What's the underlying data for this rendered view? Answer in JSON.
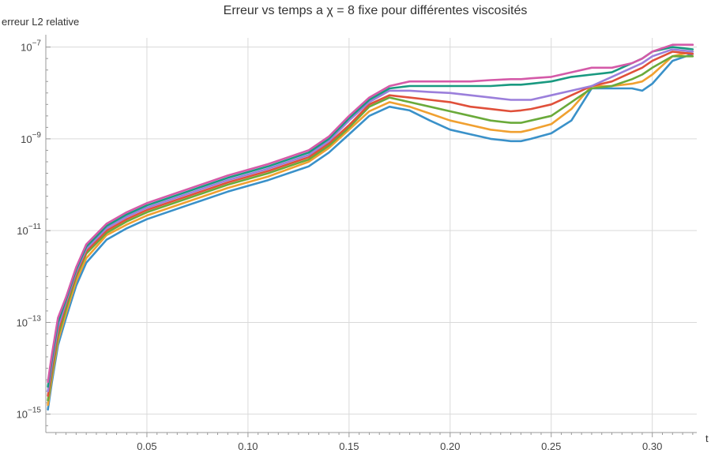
{
  "chart_data": {
    "type": "line",
    "title": "Erreur vs temps a χ = 8 fixe pour différentes viscosités",
    "xlabel": "t",
    "ylabel": "erreur L2 relative",
    "xlim": [
      0,
      0.322
    ],
    "ylim_log10": [
      -15.4,
      -6.8
    ],
    "y_scale": "log",
    "grid": true,
    "legend": "none",
    "x_ticks": [
      0.05,
      0.1,
      0.15,
      0.2,
      0.25,
      0.3
    ],
    "x_tick_labels": [
      "0.05",
      "0.10",
      "0.15",
      "0.20",
      "0.25",
      "0.30"
    ],
    "y_major_ticks_log10": [
      -15,
      -13,
      -11,
      -9,
      -7
    ],
    "y_tick_labels": [
      {
        "base": "10",
        "exp": "−15"
      },
      {
        "base": "10",
        "exp": "−13"
      },
      {
        "base": "10",
        "exp": "−11"
      },
      {
        "base": "10",
        "exp": "−9"
      },
      {
        "base": "10",
        "exp": "−7"
      }
    ],
    "colors": [
      "#3a91c9",
      "#f0a030",
      "#6aaa3a",
      "#e0503a",
      "#9b7fdb",
      "#199980",
      "#d45aa8"
    ],
    "series": [
      {
        "color": "#3a91c9",
        "t": [
          0.001,
          0.003,
          0.006,
          0.01,
          0.015,
          0.02,
          0.03,
          0.04,
          0.05,
          0.07,
          0.09,
          0.11,
          0.13,
          0.14,
          0.15,
          0.16,
          0.17,
          0.18,
          0.19,
          0.2,
          0.21,
          0.22,
          0.23,
          0.235,
          0.24,
          0.25,
          0.26,
          0.27,
          0.28,
          0.29,
          0.295,
          0.3,
          0.31,
          0.32
        ],
        "log10_err": [
          -14.9,
          -14.3,
          -13.5,
          -12.9,
          -12.2,
          -11.7,
          -11.2,
          -10.95,
          -10.75,
          -10.45,
          -10.15,
          -9.9,
          -9.6,
          -9.3,
          -8.9,
          -8.5,
          -8.3,
          -8.38,
          -8.6,
          -8.8,
          -8.9,
          -9.0,
          -9.05,
          -9.05,
          -9.0,
          -8.88,
          -8.6,
          -7.9,
          -7.9,
          -7.9,
          -7.95,
          -7.8,
          -7.3,
          -7.15
        ]
      },
      {
        "color": "#f0a030",
        "t": [
          0.001,
          0.003,
          0.006,
          0.01,
          0.015,
          0.02,
          0.03,
          0.04,
          0.05,
          0.07,
          0.09,
          0.11,
          0.13,
          0.14,
          0.15,
          0.16,
          0.17,
          0.18,
          0.19,
          0.2,
          0.21,
          0.22,
          0.23,
          0.235,
          0.24,
          0.25,
          0.26,
          0.27,
          0.28,
          0.29,
          0.295,
          0.3,
          0.31,
          0.32
        ],
        "log10_err": [
          -14.8,
          -14.2,
          -13.4,
          -12.8,
          -12.1,
          -11.6,
          -11.1,
          -10.87,
          -10.67,
          -10.37,
          -10.07,
          -9.82,
          -9.5,
          -9.2,
          -8.8,
          -8.4,
          -8.2,
          -8.3,
          -8.45,
          -8.6,
          -8.7,
          -8.8,
          -8.85,
          -8.85,
          -8.8,
          -8.68,
          -8.35,
          -7.85,
          -7.85,
          -7.8,
          -7.75,
          -7.6,
          -7.2,
          -7.1
        ]
      },
      {
        "color": "#6aaa3a",
        "t": [
          0.001,
          0.003,
          0.006,
          0.01,
          0.015,
          0.02,
          0.03,
          0.04,
          0.05,
          0.07,
          0.09,
          0.11,
          0.13,
          0.14,
          0.15,
          0.16,
          0.17,
          0.18,
          0.19,
          0.2,
          0.21,
          0.22,
          0.23,
          0.235,
          0.24,
          0.25,
          0.26,
          0.27,
          0.28,
          0.29,
          0.295,
          0.3,
          0.31,
          0.32
        ],
        "log10_err": [
          -14.7,
          -14.1,
          -13.3,
          -12.7,
          -12.0,
          -11.5,
          -11.05,
          -10.8,
          -10.6,
          -10.3,
          -10.0,
          -9.75,
          -9.45,
          -9.15,
          -8.75,
          -8.3,
          -8.1,
          -8.2,
          -8.3,
          -8.4,
          -8.5,
          -8.6,
          -8.65,
          -8.65,
          -8.6,
          -8.5,
          -8.2,
          -7.9,
          -7.85,
          -7.7,
          -7.6,
          -7.45,
          -7.2,
          -7.2
        ]
      },
      {
        "color": "#e0503a",
        "t": [
          0.001,
          0.003,
          0.006,
          0.01,
          0.015,
          0.02,
          0.03,
          0.04,
          0.05,
          0.07,
          0.09,
          0.11,
          0.13,
          0.14,
          0.15,
          0.16,
          0.17,
          0.18,
          0.19,
          0.2,
          0.21,
          0.22,
          0.23,
          0.235,
          0.24,
          0.25,
          0.26,
          0.27,
          0.28,
          0.29,
          0.295,
          0.3,
          0.31,
          0.32
        ],
        "log10_err": [
          -14.6,
          -14.0,
          -13.2,
          -12.6,
          -11.95,
          -11.45,
          -11.0,
          -10.75,
          -10.55,
          -10.25,
          -9.95,
          -9.7,
          -9.4,
          -9.1,
          -8.7,
          -8.25,
          -8.05,
          -8.1,
          -8.15,
          -8.2,
          -8.3,
          -8.35,
          -8.4,
          -8.38,
          -8.35,
          -8.25,
          -8.05,
          -7.85,
          -7.75,
          -7.55,
          -7.45,
          -7.3,
          -7.1,
          -7.15
        ]
      },
      {
        "color": "#9b7fdb",
        "t": [
          0.001,
          0.003,
          0.006,
          0.01,
          0.015,
          0.02,
          0.03,
          0.04,
          0.05,
          0.07,
          0.09,
          0.11,
          0.13,
          0.14,
          0.15,
          0.16,
          0.17,
          0.18,
          0.19,
          0.2,
          0.21,
          0.22,
          0.23,
          0.235,
          0.24,
          0.25,
          0.26,
          0.27,
          0.28,
          0.29,
          0.295,
          0.3,
          0.31,
          0.32
        ],
        "log10_err": [
          -14.5,
          -13.9,
          -13.1,
          -12.55,
          -11.9,
          -11.4,
          -10.95,
          -10.7,
          -10.5,
          -10.2,
          -9.9,
          -9.65,
          -9.35,
          -9.05,
          -8.6,
          -8.2,
          -7.95,
          -7.95,
          -7.98,
          -8.0,
          -8.05,
          -8.1,
          -8.15,
          -8.15,
          -8.15,
          -8.05,
          -7.95,
          -7.85,
          -7.65,
          -7.45,
          -7.35,
          -7.2,
          -7.05,
          -7.1
        ]
      },
      {
        "color": "#199980",
        "t": [
          0.001,
          0.003,
          0.006,
          0.01,
          0.015,
          0.02,
          0.03,
          0.04,
          0.05,
          0.07,
          0.09,
          0.11,
          0.13,
          0.14,
          0.15,
          0.16,
          0.17,
          0.18,
          0.19,
          0.2,
          0.21,
          0.22,
          0.23,
          0.235,
          0.24,
          0.25,
          0.26,
          0.27,
          0.28,
          0.29,
          0.295,
          0.3,
          0.31,
          0.32
        ],
        "log10_err": [
          -14.4,
          -13.8,
          -13.0,
          -12.5,
          -11.85,
          -11.35,
          -10.9,
          -10.65,
          -10.45,
          -10.15,
          -9.85,
          -9.6,
          -9.3,
          -9.0,
          -8.55,
          -8.15,
          -7.9,
          -7.85,
          -7.85,
          -7.85,
          -7.85,
          -7.85,
          -7.82,
          -7.82,
          -7.8,
          -7.75,
          -7.65,
          -7.6,
          -7.55,
          -7.35,
          -7.25,
          -7.1,
          -7.0,
          -7.05
        ]
      },
      {
        "color": "#d45aa8",
        "t": [
          0.001,
          0.003,
          0.006,
          0.01,
          0.015,
          0.02,
          0.03,
          0.04,
          0.05,
          0.07,
          0.09,
          0.11,
          0.13,
          0.14,
          0.15,
          0.16,
          0.17,
          0.18,
          0.19,
          0.2,
          0.21,
          0.22,
          0.23,
          0.235,
          0.24,
          0.25,
          0.26,
          0.27,
          0.28,
          0.29,
          0.295,
          0.3,
          0.31,
          0.32
        ],
        "log10_err": [
          -14.3,
          -13.7,
          -12.9,
          -12.45,
          -11.8,
          -11.3,
          -10.85,
          -10.6,
          -10.4,
          -10.1,
          -9.8,
          -9.55,
          -9.25,
          -8.95,
          -8.5,
          -8.1,
          -7.85,
          -7.75,
          -7.75,
          -7.75,
          -7.75,
          -7.72,
          -7.7,
          -7.7,
          -7.68,
          -7.65,
          -7.55,
          -7.45,
          -7.45,
          -7.35,
          -7.25,
          -7.1,
          -6.95,
          -6.95
        ]
      }
    ]
  }
}
